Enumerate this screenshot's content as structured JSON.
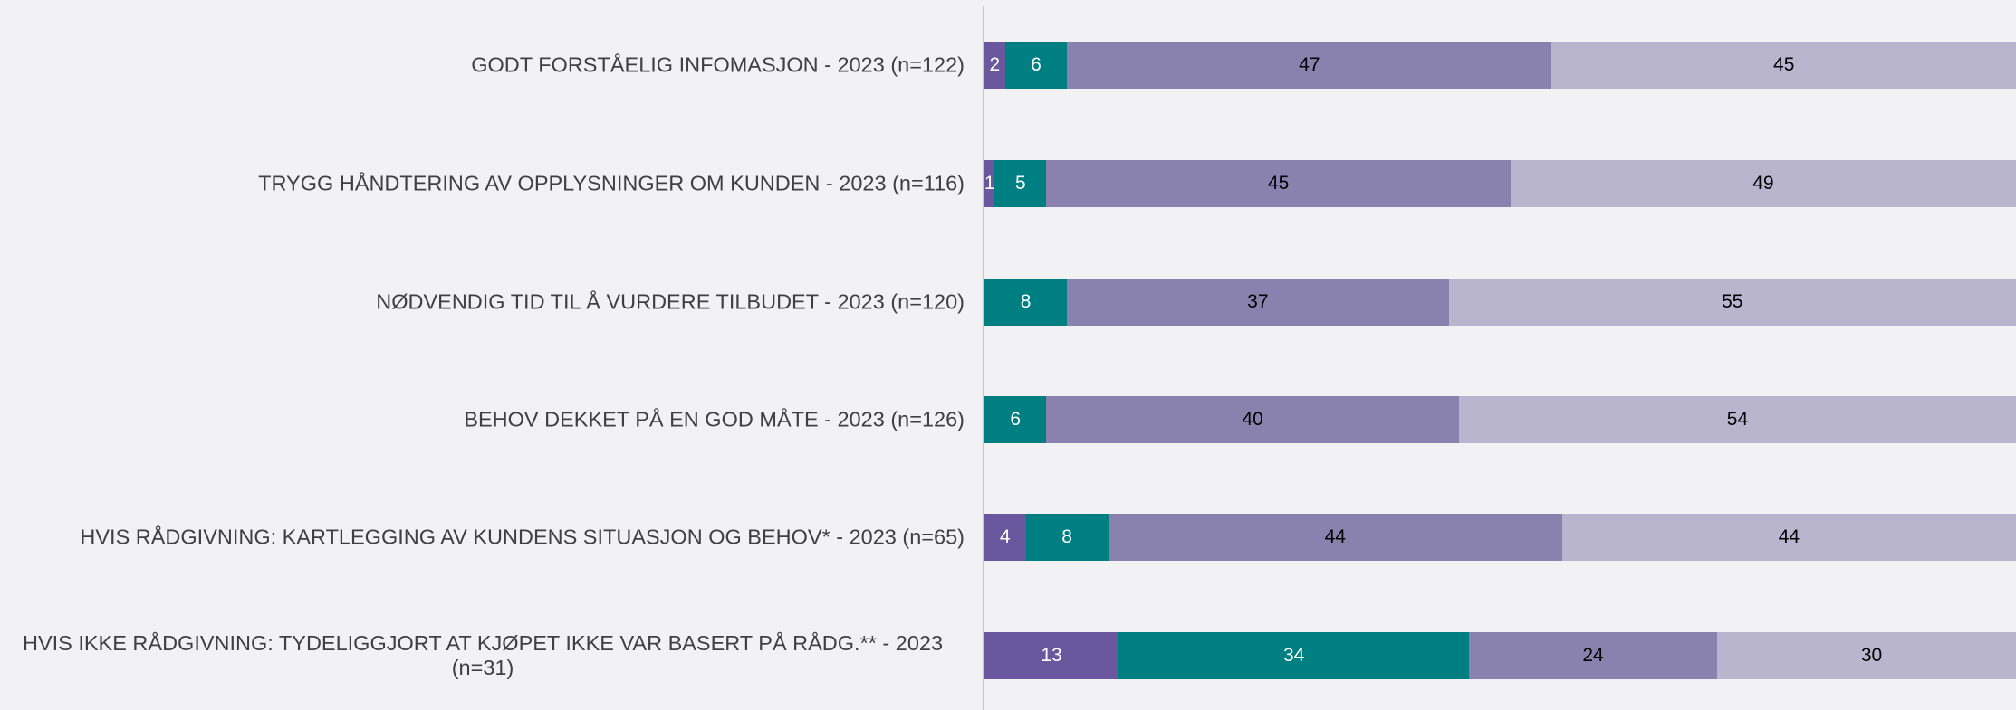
{
  "chart_data": {
    "type": "stacked-bar-horizontal",
    "categories": [
      "GODT FORSTÅELIG INFOMASJON - 2023 (n=122)",
      "TRYGG HÅNDTERING AV OPPLYSNINGER OM KUNDEN - 2023 (n=116)",
      "NØDVENDIG TID TIL Å VURDERE TILBUDET - 2023 (n=120)",
      "BEHOV DEKKET PÅ EN GOD MÅTE - 2023 (n=126)",
      "HVIS RÅDGIVNING: KARTLEGGING AV KUNDENS SITUASJON OG BEHOV* - 2023 (n=65)",
      "HVIS IKKE RÅDGIVNING: TYDELIGGJORT AT KJØPET IKKE VAR BASERT PÅ RÅDG.**  - 2023 (n=31)"
    ],
    "series": [
      {
        "color": "#6a579d",
        "values": [
          2,
          1,
          null,
          null,
          4,
          13
        ]
      },
      {
        "color": "#007f82",
        "values": [
          6,
          5,
          8,
          6,
          8,
          34
        ]
      },
      {
        "color": "#8a82ae",
        "values": [
          47,
          45,
          37,
          40,
          44,
          24
        ]
      },
      {
        "color": "#b9b5cf",
        "values": [
          45,
          49,
          55,
          54,
          44,
          30
        ]
      }
    ],
    "xlim": [
      0,
      100
    ]
  }
}
